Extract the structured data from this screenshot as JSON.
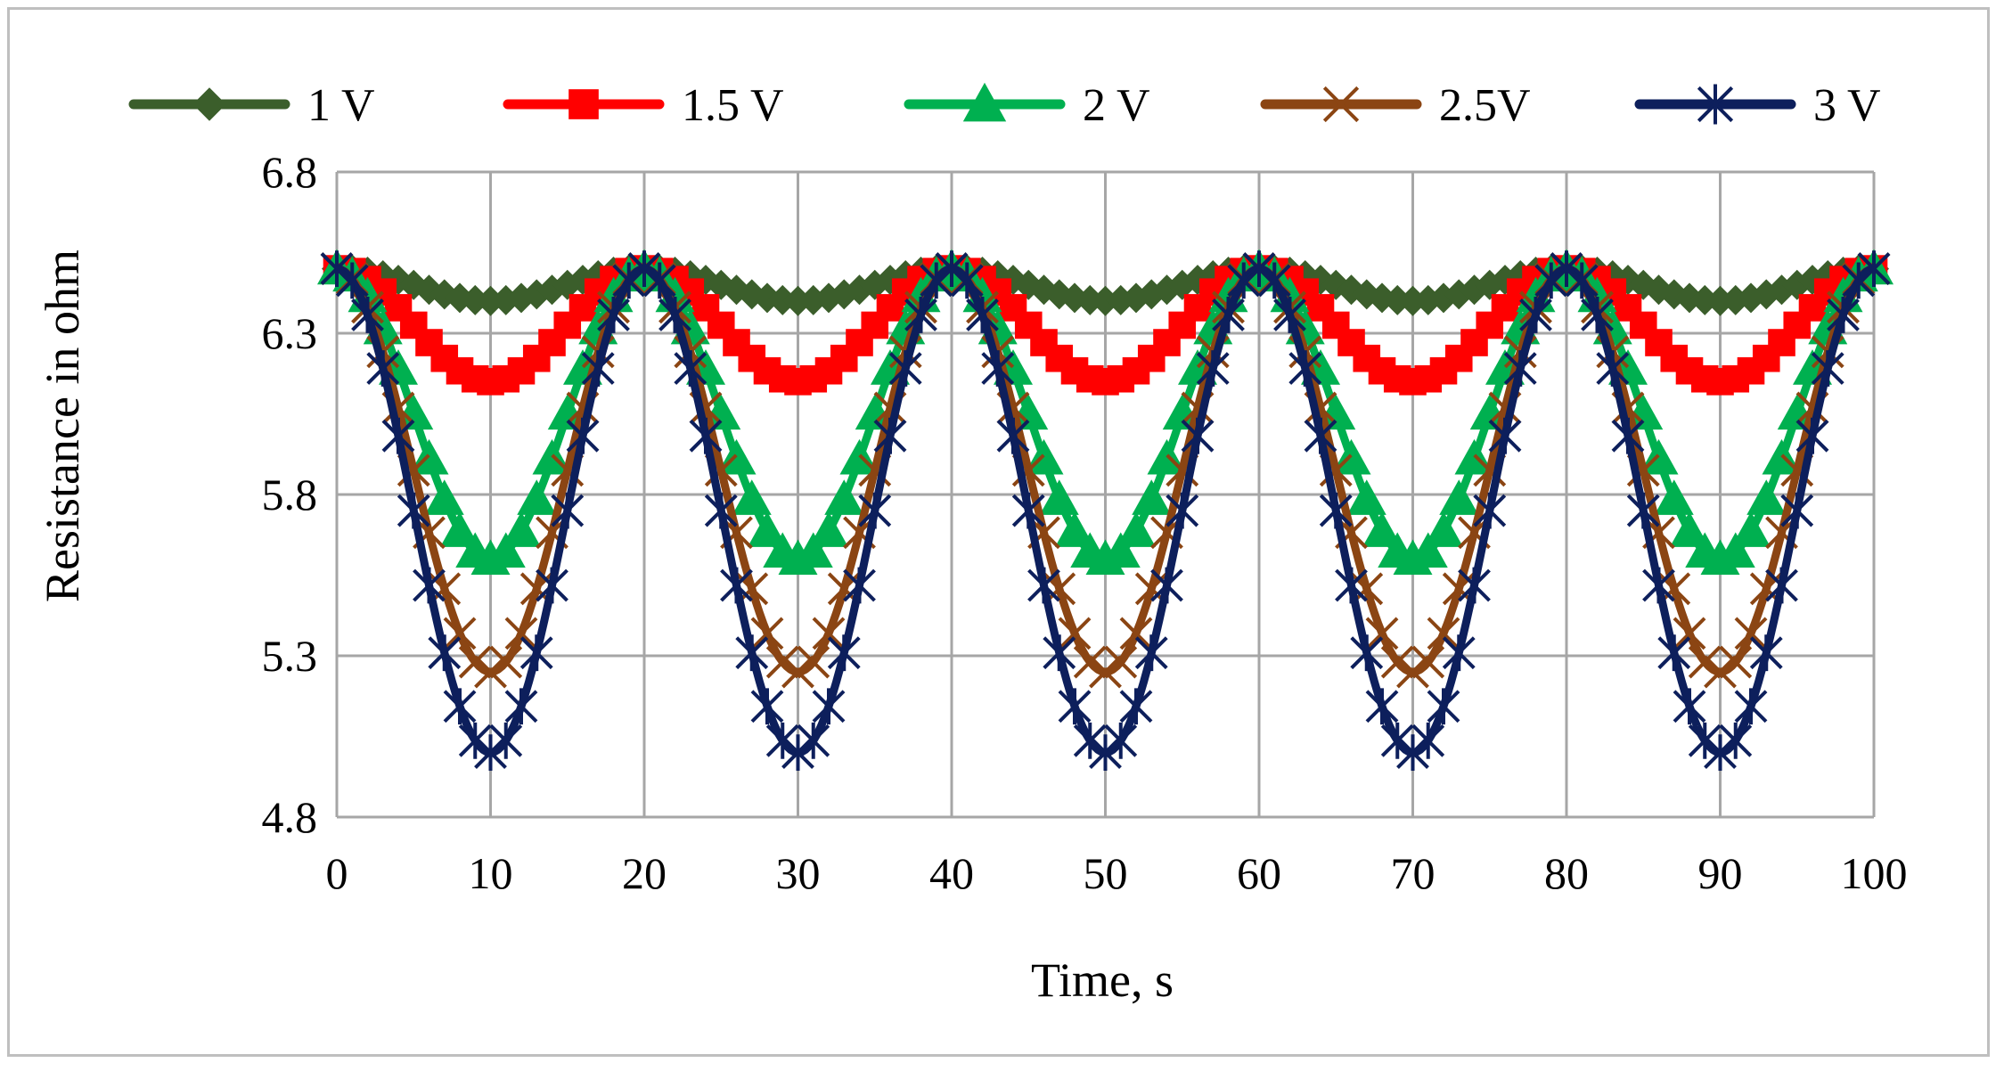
{
  "chart_data": {
    "type": "line",
    "title": "",
    "xlabel": "Time, s",
    "ylabel": "Resistance in ohm",
    "xlim": [
      0,
      100
    ],
    "ylim": [
      4.8,
      6.8
    ],
    "x_ticks": [
      "0",
      "10",
      "20",
      "30",
      "40",
      "50",
      "60",
      "70",
      "80",
      "90",
      "100"
    ],
    "y_ticks": [
      "4.8",
      "5.3",
      "5.8",
      "6.3",
      "6.8"
    ],
    "grid": true,
    "legend_position": "top",
    "period_s": 20,
    "max_resistance": 6.5,
    "series": [
      {
        "name": "1 V",
        "color": "#3b5e2b",
        "marker": "diamond",
        "max": 6.5,
        "min": 6.4
      },
      {
        "name": "1.5 V",
        "color": "#ff0000",
        "marker": "square",
        "max": 6.5,
        "min": 6.15
      },
      {
        "name": "2 V",
        "color": "#00b050",
        "marker": "triangle",
        "max": 6.5,
        "min": 5.6
      },
      {
        "name": "2.5V",
        "color": "#8b4513",
        "marker": "x",
        "max": 6.5,
        "min": 5.25
      },
      {
        "name": "3 V",
        "color": "#0d1f5c",
        "marker": "star",
        "max": 6.5,
        "min": 5.0
      }
    ]
  }
}
